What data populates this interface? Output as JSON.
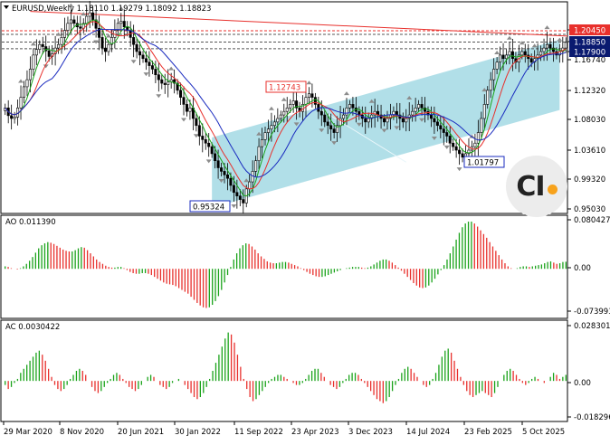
{
  "chart_data": [
    {
      "type": "candlestick",
      "title": "EURUSD,Weekly  1.18110 1.19279 1.18092 1.18823",
      "symbol": "EURUSD",
      "timeframe": "Weekly",
      "ohlc": {
        "open": 1.1811,
        "high": 1.19279,
        "low": 1.18092,
        "close": 1.18823
      },
      "price_axis_labels": [
        "1.20450",
        "1.18850",
        "1.17900",
        "1.16740",
        "1.12320",
        "1.08030",
        "1.03610",
        "0.99320",
        "0.95030"
      ],
      "price_tags": [
        {
          "label": "1.20450",
          "value": 1.2045,
          "color": "#e8302c"
        },
        {
          "label": "1.18850",
          "value": 1.1885,
          "color": "#0a1a70"
        },
        {
          "label": "1.17900",
          "value": 1.179,
          "color": "#0a1a70"
        }
      ],
      "annotations": [
        {
          "label": "1.12743",
          "value": 1.12743
        },
        {
          "label": "1.01797",
          "value": 1.01797
        },
        {
          "label": "0.95324",
          "value": 0.95324
        }
      ],
      "ylim": [
        0.9503,
        1.2045
      ],
      "moving_average_colors": [
        "#e8302c",
        "#1aa31a",
        "#1a2bbf"
      ],
      "channel_color": "#a9dbe6",
      "weekly_closes": [
        1.095,
        1.084,
        1.08,
        1.082,
        1.095,
        1.11,
        1.125,
        1.135,
        1.15,
        1.17,
        1.178,
        1.185,
        1.182,
        1.176,
        1.168,
        1.172,
        1.18,
        1.185,
        1.195,
        1.205,
        1.215,
        1.22,
        1.215,
        1.21,
        1.208,
        1.215,
        1.225,
        1.23,
        1.22,
        1.208,
        1.195,
        1.18,
        1.175,
        1.185,
        1.195,
        1.205,
        1.215,
        1.218,
        1.21,
        1.205,
        1.195,
        1.185,
        1.175,
        1.17,
        1.165,
        1.16,
        1.155,
        1.15,
        1.142,
        1.135,
        1.13,
        1.128,
        1.132,
        1.135,
        1.13,
        1.12,
        1.11,
        1.1,
        1.09,
        1.095,
        1.08,
        1.07,
        1.055,
        1.05,
        1.045,
        1.04,
        1.03,
        1.02,
        1.01,
        1.005,
        1.0,
        0.995,
        0.985,
        0.975,
        0.97,
        0.965,
        0.96,
        0.98,
        0.99,
        1.005,
        1.02,
        1.04,
        1.05,
        1.06,
        1.065,
        1.07,
        1.075,
        1.08,
        1.085,
        1.09,
        1.095,
        1.1,
        1.105,
        1.095,
        1.09,
        1.1,
        1.11,
        1.115,
        1.11,
        1.1,
        1.09,
        1.085,
        1.075,
        1.07,
        1.065,
        1.06,
        1.07,
        1.08,
        1.085,
        1.095,
        1.1,
        1.095,
        1.09,
        1.085,
        1.08,
        1.075,
        1.08,
        1.085,
        1.09,
        1.085,
        1.08,
        1.075,
        1.08,
        1.085,
        1.09,
        1.085,
        1.08,
        1.075,
        1.08,
        1.085,
        1.09,
        1.095,
        1.1,
        1.095,
        1.09,
        1.085,
        1.08,
        1.075,
        1.07,
        1.065,
        1.06,
        1.055,
        1.045,
        1.04,
        1.035,
        1.03,
        1.025,
        1.03,
        1.035,
        1.04,
        1.045,
        1.06,
        1.08,
        1.1,
        1.12,
        1.135,
        1.15,
        1.16,
        1.17,
        1.165,
        1.17,
        1.175,
        1.165,
        1.16,
        1.17,
        1.175,
        1.17,
        1.165,
        1.16,
        1.165,
        1.17,
        1.175,
        1.18,
        1.185,
        1.18,
        1.175,
        1.17,
        1.175,
        1.18,
        1.188
      ]
    },
    {
      "type": "bar",
      "title": "AO 0.011390",
      "indicator": "AO",
      "value": 0.01139,
      "axis_labels": [
        "0.080427",
        "0.00",
        "-0.073993"
      ],
      "ylim": [
        -0.073993,
        0.080427
      ],
      "colors": {
        "up": "#1aa31a",
        "down": "#e8302c"
      },
      "values": [
        0.004,
        0.003,
        0.001,
        0.0,
        -0.001,
        0.001,
        0.004,
        0.008,
        0.013,
        0.019,
        0.026,
        0.033,
        0.038,
        0.041,
        0.043,
        0.042,
        0.04,
        0.037,
        0.034,
        0.031,
        0.029,
        0.028,
        0.028,
        0.03,
        0.033,
        0.035,
        0.034,
        0.03,
        0.025,
        0.02,
        0.015,
        0.011,
        0.008,
        0.005,
        0.003,
        0.002,
        0.002,
        0.003,
        0.003,
        0.001,
        -0.002,
        -0.005,
        -0.007,
        -0.008,
        -0.008,
        -0.007,
        -0.007,
        -0.008,
        -0.01,
        -0.013,
        -0.016,
        -0.019,
        -0.022,
        -0.024,
        -0.025,
        -0.026,
        -0.028,
        -0.031,
        -0.034,
        -0.037,
        -0.04,
        -0.045,
        -0.05,
        -0.055,
        -0.059,
        -0.062,
        -0.063,
        -0.062,
        -0.058,
        -0.052,
        -0.044,
        -0.034,
        -0.022,
        -0.01,
        0.003,
        0.015,
        0.025,
        0.033,
        0.038,
        0.041,
        0.04,
        0.036,
        0.031,
        0.025,
        0.02,
        0.016,
        0.012,
        0.01,
        0.009,
        0.009,
        0.01,
        0.011,
        0.011,
        0.01,
        0.008,
        0.006,
        0.004,
        0.001,
        -0.002,
        -0.005,
        -0.008,
        -0.01,
        -0.012,
        -0.013,
        -0.013,
        -0.012,
        -0.01,
        -0.008,
        -0.006,
        -0.004,
        -0.002,
        0.0,
        0.001,
        0.002,
        0.003,
        0.003,
        0.003,
        0.002,
        0.001,
        0.002,
        0.004,
        0.007,
        0.01,
        0.013,
        0.015,
        0.015,
        0.013,
        0.01,
        0.006,
        0.002,
        -0.003,
        -0.008,
        -0.013,
        -0.018,
        -0.023,
        -0.027,
        -0.03,
        -0.031,
        -0.03,
        -0.027,
        -0.022,
        -0.016,
        -0.009,
        -0.002,
        0.006,
        0.015,
        0.025,
        0.036,
        0.047,
        0.058,
        0.067,
        0.073,
        0.076,
        0.076,
        0.073,
        0.068,
        0.062,
        0.056,
        0.05,
        0.043,
        0.036,
        0.029,
        0.022,
        0.015,
        0.009,
        0.004,
        0.001,
        0.0,
        0.001,
        0.003,
        0.004,
        0.004,
        0.003,
        0.004,
        0.005,
        0.006,
        0.007,
        0.009,
        0.011,
        0.012,
        0.01,
        0.008,
        0.009,
        0.011,
        0.0114
      ]
    },
    {
      "type": "bar",
      "title": "AC 0.0030422",
      "indicator": "AC",
      "value": 0.0030422,
      "axis_labels": [
        "0.0283014",
        "0.00",
        "-0.018296"
      ],
      "ylim": [
        -0.018296,
        0.0283014
      ],
      "colors": {
        "up": "#1aa31a",
        "down": "#e8302c"
      },
      "x_labels": [
        "29 Mar 2020",
        "8 Nov 2020",
        "20 Jun 2021",
        "30 Jan 2022",
        "11 Sep 2022",
        "23 Apr 2023",
        "3 Dec 2023",
        "14 Jul 2024",
        "23 Feb 2025",
        "5 Oct 2025"
      ],
      "values": [
        -0.002,
        -0.004,
        -0.003,
        -0.001,
        0.001,
        0.004,
        0.006,
        0.008,
        0.01,
        0.012,
        0.014,
        0.015,
        0.013,
        0.01,
        0.006,
        0.002,
        -0.002,
        -0.004,
        -0.005,
        -0.004,
        -0.002,
        0.001,
        0.003,
        0.005,
        0.006,
        0.005,
        0.003,
        0.0,
        -0.003,
        -0.005,
        -0.006,
        -0.005,
        -0.003,
        -0.001,
        0.001,
        0.003,
        0.004,
        0.003,
        0.001,
        -0.001,
        -0.003,
        -0.004,
        -0.005,
        -0.004,
        -0.002,
        0.0,
        0.002,
        0.003,
        0.002,
        0.0,
        -0.002,
        -0.003,
        -0.004,
        -0.003,
        -0.001,
        0.0,
        0.001,
        0.0,
        -0.002,
        -0.004,
        -0.006,
        -0.008,
        -0.009,
        -0.008,
        -0.006,
        -0.003,
        0.001,
        0.005,
        0.009,
        0.013,
        0.017,
        0.021,
        0.024,
        0.023,
        0.019,
        0.013,
        0.007,
        0.001,
        -0.004,
        -0.008,
        -0.01,
        -0.009,
        -0.007,
        -0.005,
        -0.003,
        -0.001,
        0.001,
        0.002,
        0.003,
        0.003,
        0.002,
        0.001,
        0.0,
        -0.001,
        -0.002,
        -0.002,
        -0.001,
        0.001,
        0.003,
        0.005,
        0.006,
        0.006,
        0.004,
        0.002,
        0.0,
        -0.002,
        -0.003,
        -0.004,
        -0.003,
        -0.001,
        0.001,
        0.003,
        0.004,
        0.004,
        0.003,
        0.001,
        -0.001,
        -0.003,
        -0.005,
        -0.007,
        -0.009,
        -0.01,
        -0.011,
        -0.01,
        -0.008,
        -0.005,
        -0.002,
        0.001,
        0.004,
        0.006,
        0.007,
        0.006,
        0.004,
        0.002,
        0.0,
        -0.002,
        -0.003,
        -0.002,
        0.001,
        0.004,
        0.008,
        0.012,
        0.015,
        0.016,
        0.014,
        0.01,
        0.006,
        0.002,
        -0.002,
        -0.005,
        -0.007,
        -0.008,
        -0.007,
        -0.006,
        -0.005,
        -0.006,
        -0.007,
        -0.008,
        -0.006,
        -0.003,
        0.0,
        0.003,
        0.005,
        0.006,
        0.005,
        0.003,
        0.001,
        -0.001,
        -0.002,
        -0.001,
        0.001,
        0.002,
        0.001,
        0.0,
        -0.001,
        0.0,
        0.002,
        0.004,
        0.003,
        0.001,
        0.002,
        0.003
      ]
    }
  ]
}
